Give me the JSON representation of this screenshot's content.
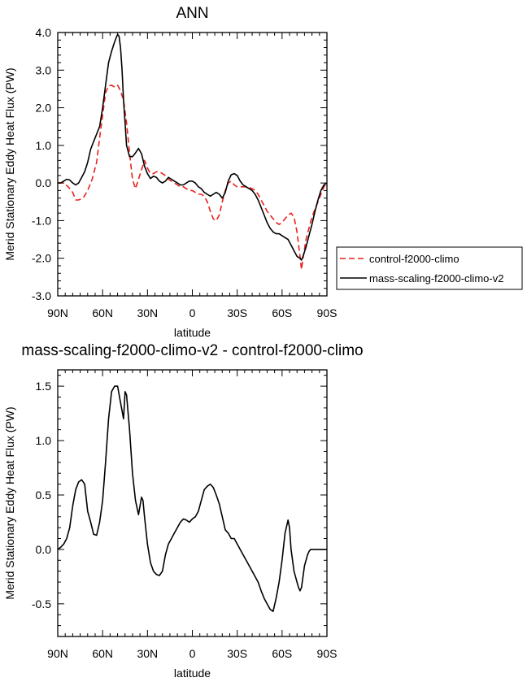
{
  "chart_data": [
    {
      "type": "line",
      "title": "ANN",
      "xlabel": "latitude",
      "ylabel": "Merid Stationary Eddy Heat Flux (PW)",
      "xlim": [
        90,
        -90
      ],
      "ylim": [
        -3.0,
        4.0
      ],
      "x_ticks": [
        90,
        60,
        30,
        0,
        -30,
        -60,
        -90
      ],
      "x_tick_labels": [
        "90N",
        "60N",
        "30N",
        "0",
        "30S",
        "60S",
        "90S"
      ],
      "y_ticks": [
        -3,
        -2,
        -1,
        0,
        1,
        2,
        3,
        4
      ],
      "y_tick_labels": [
        "-3.0",
        "-2.0",
        "-1.0",
        "0.0",
        "1.0",
        "2.0",
        "3.0",
        "4.0"
      ],
      "legend_position": "right",
      "series": [
        {
          "name": "control-f2000-climo",
          "color": "#e8201e",
          "dash": "dashed",
          "x": [
            90,
            86,
            83,
            80,
            78,
            76,
            73,
            70,
            67,
            64,
            62,
            60,
            58,
            56,
            54,
            52,
            50,
            48,
            46,
            44,
            42,
            40,
            38,
            36,
            34,
            32,
            30,
            28,
            26,
            24,
            22,
            20,
            18,
            16,
            14,
            12,
            10,
            8,
            6,
            4,
            2,
            0,
            -2,
            -4,
            -6,
            -8,
            -10,
            -12,
            -14,
            -16,
            -18,
            -20,
            -22,
            -24,
            -26,
            -28,
            -30,
            -32,
            -34,
            -36,
            -38,
            -40,
            -42,
            -44,
            -46,
            -48,
            -50,
            -52,
            -54,
            -56,
            -58,
            -60,
            -62,
            -64,
            -66,
            -68,
            -70,
            -72,
            -73,
            -74,
            -76,
            -78,
            -80,
            -83,
            -86,
            -88,
            -90
          ],
          "y": [
            0.0,
            0.0,
            -0.1,
            -0.25,
            -0.45,
            -0.45,
            -0.4,
            -0.2,
            0.1,
            0.55,
            1.2,
            1.8,
            2.4,
            2.58,
            2.6,
            2.55,
            2.6,
            2.45,
            2.2,
            1.6,
            0.8,
            0.1,
            -0.15,
            0.1,
            0.35,
            0.6,
            0.4,
            0.25,
            0.25,
            0.3,
            0.3,
            0.25,
            0.2,
            0.1,
            0.05,
            0.0,
            -0.05,
            -0.1,
            -0.1,
            -0.15,
            -0.2,
            -0.2,
            -0.25,
            -0.3,
            -0.3,
            -0.35,
            -0.5,
            -0.75,
            -0.95,
            -1.0,
            -0.85,
            -0.5,
            -0.2,
            0.0,
            0.05,
            -0.05,
            -0.1,
            -0.1,
            -0.1,
            -0.1,
            -0.12,
            -0.15,
            -0.2,
            -0.3,
            -0.45,
            -0.6,
            -0.75,
            -0.85,
            -0.95,
            -1.05,
            -1.1,
            -1.05,
            -0.95,
            -0.85,
            -0.8,
            -0.9,
            -1.3,
            -1.95,
            -2.3,
            -2.0,
            -1.5,
            -1.2,
            -0.9,
            -0.6,
            -0.3,
            -0.1,
            0.0
          ]
        },
        {
          "name": "mass-scaling-f2000-climo-v2",
          "color": "#000000",
          "dash": "solid",
          "x": [
            90,
            88,
            86,
            84,
            82,
            80,
            78,
            76,
            74,
            72,
            70,
            68,
            66,
            64,
            62,
            60,
            58,
            56,
            54,
            52,
            51,
            50,
            49,
            48,
            47,
            46,
            45,
            44,
            42,
            40,
            38,
            36,
            34,
            33,
            32,
            30,
            28,
            26,
            24,
            22,
            20,
            18,
            16,
            14,
            12,
            10,
            8,
            6,
            4,
            2,
            0,
            -2,
            -4,
            -6,
            -8,
            -10,
            -12,
            -14,
            -16,
            -18,
            -20,
            -22,
            -24,
            -26,
            -28,
            -30,
            -32,
            -34,
            -36,
            -38,
            -40,
            -42,
            -44,
            -46,
            -48,
            -50,
            -52,
            -54,
            -56,
            -58,
            -60,
            -62,
            -64,
            -66,
            -68,
            -70,
            -72,
            -73,
            -74,
            -76,
            -78,
            -80,
            -82,
            -84,
            -86,
            -88,
            -90
          ],
          "y": [
            0.0,
            0.0,
            0.05,
            0.1,
            0.08,
            0.0,
            -0.05,
            0.0,
            0.15,
            0.3,
            0.55,
            0.9,
            1.1,
            1.3,
            1.5,
            2.0,
            2.6,
            3.2,
            3.5,
            3.75,
            3.85,
            3.95,
            3.9,
            3.6,
            3.0,
            2.2,
            1.6,
            1.0,
            0.7,
            0.7,
            0.8,
            0.92,
            0.78,
            0.62,
            0.45,
            0.25,
            0.12,
            0.18,
            0.15,
            0.05,
            0.0,
            0.05,
            0.15,
            0.1,
            0.05,
            0.0,
            -0.05,
            -0.05,
            0.0,
            0.05,
            0.05,
            0.0,
            -0.1,
            -0.15,
            -0.25,
            -0.3,
            -0.35,
            -0.3,
            -0.25,
            -0.3,
            -0.4,
            -0.25,
            0.05,
            0.22,
            0.25,
            0.2,
            0.05,
            -0.05,
            -0.1,
            -0.15,
            -0.2,
            -0.3,
            -0.45,
            -0.65,
            -0.85,
            -1.05,
            -1.2,
            -1.3,
            -1.35,
            -1.35,
            -1.4,
            -1.45,
            -1.5,
            -1.65,
            -1.8,
            -1.95,
            -2.0,
            -2.05,
            -1.95,
            -1.7,
            -1.4,
            -1.1,
            -0.75,
            -0.45,
            -0.2,
            -0.05,
            0.0
          ]
        }
      ]
    },
    {
      "type": "line",
      "title": "mass-scaling-f2000-climo-v2 - control-f2000-climo",
      "xlabel": "latitude",
      "ylabel": "Merid Stationary Eddy Heat Flux (PW)",
      "xlim": [
        90,
        -90
      ],
      "ylim": [
        -0.8,
        1.65
      ],
      "x_ticks": [
        90,
        60,
        30,
        0,
        -30,
        -60,
        -90
      ],
      "x_tick_labels": [
        "90N",
        "60N",
        "30N",
        "0",
        "30S",
        "60S",
        "90S"
      ],
      "y_ticks": [
        -0.5,
        0.0,
        0.5,
        1.0,
        1.5
      ],
      "y_tick_labels": [
        "-0.5",
        "0.0",
        "0.5",
        "1.0",
        "1.5"
      ],
      "series": [
        {
          "color": "#000000",
          "dash": "solid",
          "x": [
            90,
            88,
            86,
            84,
            82,
            80,
            78,
            76,
            74,
            72,
            70,
            68,
            66,
            64,
            62,
            60,
            58,
            56,
            54,
            52,
            50,
            48,
            46,
            45,
            44,
            42,
            40,
            38,
            36,
            34,
            33,
            32,
            30,
            28,
            26,
            24,
            22,
            20,
            18,
            16,
            14,
            12,
            10,
            8,
            6,
            4,
            2,
            0,
            -2,
            -4,
            -6,
            -8,
            -10,
            -12,
            -14,
            -16,
            -18,
            -20,
            -22,
            -24,
            -26,
            -28,
            -30,
            -32,
            -34,
            -36,
            -38,
            -40,
            -42,
            -44,
            -46,
            -48,
            -50,
            -52,
            -54,
            -56,
            -58,
            -60,
            -62,
            -64,
            -65,
            -66,
            -68,
            -70,
            -71,
            -72,
            -73,
            -74,
            -75,
            -76,
            -77,
            -78,
            -79,
            -80,
            -82,
            -84,
            -86,
            -88,
            -90
          ],
          "y": [
            0.0,
            0.02,
            0.05,
            0.1,
            0.2,
            0.4,
            0.55,
            0.62,
            0.64,
            0.6,
            0.35,
            0.25,
            0.14,
            0.13,
            0.25,
            0.45,
            0.8,
            1.2,
            1.45,
            1.5,
            1.5,
            1.35,
            1.2,
            1.45,
            1.42,
            1.1,
            0.7,
            0.45,
            0.32,
            0.48,
            0.45,
            0.3,
            0.05,
            -0.12,
            -0.2,
            -0.23,
            -0.24,
            -0.2,
            -0.05,
            0.05,
            0.1,
            0.15,
            0.2,
            0.25,
            0.28,
            0.27,
            0.25,
            0.28,
            0.3,
            0.35,
            0.45,
            0.55,
            0.58,
            0.6,
            0.57,
            0.5,
            0.42,
            0.3,
            0.18,
            0.15,
            0.1,
            0.1,
            0.05,
            0.0,
            -0.05,
            -0.1,
            -0.15,
            -0.2,
            -0.25,
            -0.3,
            -0.38,
            -0.45,
            -0.5,
            -0.55,
            -0.57,
            -0.45,
            -0.3,
            -0.1,
            0.15,
            0.27,
            0.2,
            0.0,
            -0.2,
            -0.3,
            -0.35,
            -0.38,
            -0.35,
            -0.25,
            -0.15,
            -0.1,
            -0.05,
            -0.02,
            0.0,
            0.0,
            0.0,
            0.0,
            0.0,
            0.0,
            0.0
          ]
        }
      ]
    }
  ],
  "colors": {
    "control": "#e8201e",
    "mass_scaling": "#000000"
  }
}
